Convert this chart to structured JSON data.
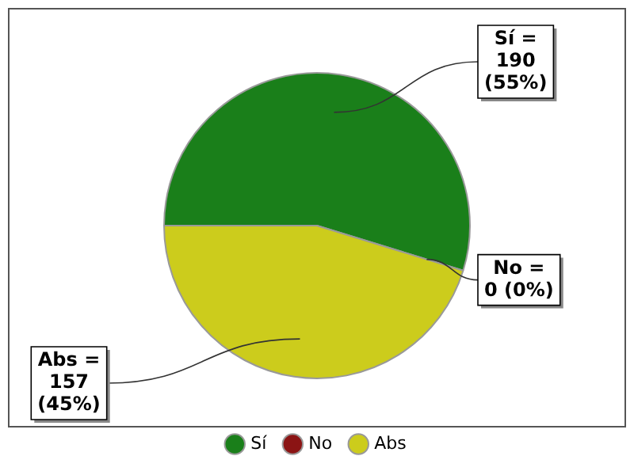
{
  "chart_data": {
    "type": "pie",
    "categories": [
      "Sí",
      "No",
      "Abs"
    ],
    "values": [
      190,
      0,
      157
    ],
    "colors": [
      "#1a7f1a",
      "#8b1414",
      "#cccc1c"
    ],
    "value_labels": [
      "Sí =\n190\n(55%)",
      "No =\n0 (0%)",
      "Abs =\n157\n(45%)"
    ],
    "legend": "bottom"
  }
}
